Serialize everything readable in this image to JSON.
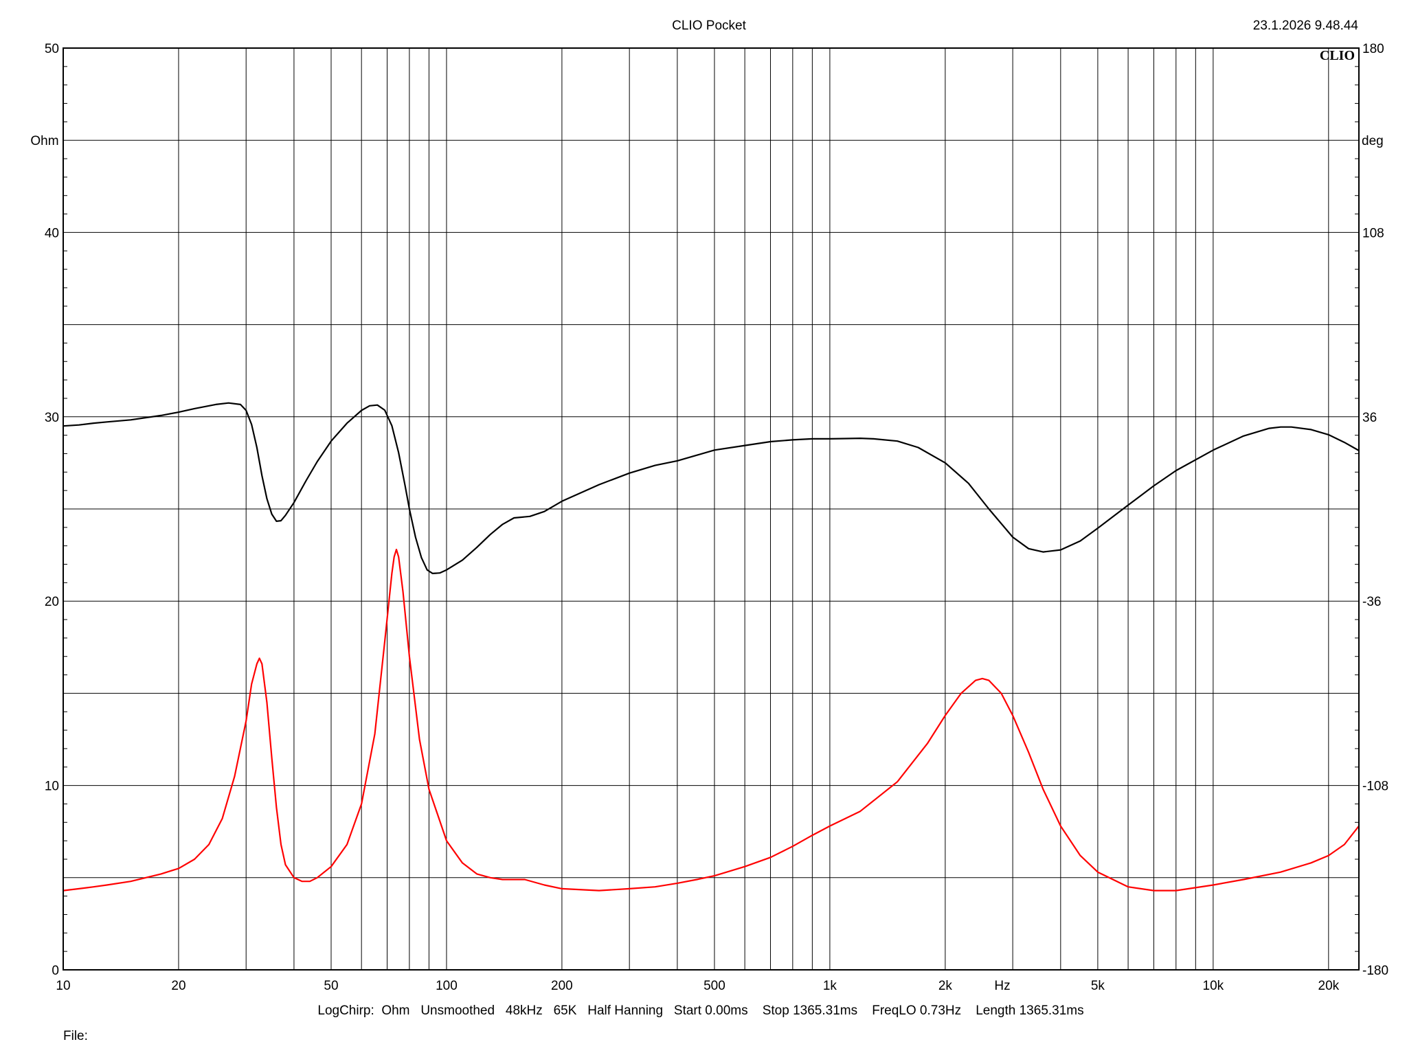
{
  "header": {
    "title": "CLIO Pocket",
    "timestamp": "23.1.2026 9.48.44",
    "brand_mark": "CLIO"
  },
  "footer": {
    "params": "LogChirp:  Ohm   Unsmoothed   48kHz   65K   Half Hanning   Start 0.00ms    Stop 1365.31ms    FreqLO 0.73Hz    Length 1365.31ms",
    "file_label": "File:"
  },
  "chart_data": {
    "type": "line",
    "x_scale": "log",
    "xlim": [
      10,
      24000
    ],
    "x_unit_label": "Hz",
    "x_ticks": [
      10,
      20,
      50,
      100,
      200,
      500,
      1000,
      2000,
      5000,
      10000,
      20000
    ],
    "x_tick_labels": [
      "10",
      "20",
      "50",
      "100",
      "200",
      "500",
      "1k",
      "2k",
      "5k",
      "10k",
      "20k"
    ],
    "y_left": {
      "lim": [
        0,
        50
      ],
      "unit_label": "Ohm",
      "ticks": [
        0,
        10,
        20,
        30,
        40,
        50
      ],
      "tick_labels": [
        "0",
        "10",
        "20",
        "30",
        "40",
        "50"
      ]
    },
    "y_right": {
      "lim": [
        -180,
        180
      ],
      "unit_label": "deg",
      "ticks": [
        -180,
        -108,
        -36,
        36,
        108,
        180
      ],
      "tick_labels": [
        "-180",
        "-108",
        "-36",
        "36",
        "108",
        "180"
      ]
    },
    "grid": true,
    "series": [
      {
        "axis": "right",
        "color": "#000000",
        "points": [
          [
            10,
            32.4
          ],
          [
            11,
            32.8
          ],
          [
            12,
            33.5
          ],
          [
            13,
            34.0
          ],
          [
            15,
            34.8
          ],
          [
            18,
            36.5
          ],
          [
            20,
            37.8
          ],
          [
            22,
            39.2
          ],
          [
            25,
            40.8
          ],
          [
            27,
            41.4
          ],
          [
            29,
            40.8
          ],
          [
            30,
            38.5
          ],
          [
            31,
            33.0
          ],
          [
            32,
            24.0
          ],
          [
            33,
            13.0
          ],
          [
            34,
            4.0
          ],
          [
            35,
            -2.0
          ],
          [
            36,
            -4.8
          ],
          [
            37,
            -4.6
          ],
          [
            38,
            -2.5
          ],
          [
            40,
            2.5
          ],
          [
            43,
            11.0
          ],
          [
            46,
            18.5
          ],
          [
            50,
            26.5
          ],
          [
            55,
            33.5
          ],
          [
            60,
            38.5
          ],
          [
            63,
            40.3
          ],
          [
            66,
            40.6
          ],
          [
            69,
            38.6
          ],
          [
            72,
            32.5
          ],
          [
            75,
            22.0
          ],
          [
            78,
            9.0
          ],
          [
            80,
            0.0
          ],
          [
            83,
            -11.0
          ],
          [
            86,
            -19.0
          ],
          [
            89,
            -23.8
          ],
          [
            92,
            -25.2
          ],
          [
            96,
            -25.0
          ],
          [
            100,
            -23.8
          ],
          [
            110,
            -20.0
          ],
          [
            120,
            -15.0
          ],
          [
            130,
            -10.0
          ],
          [
            140,
            -6.0
          ],
          [
            150,
            -3.5
          ],
          [
            165,
            -2.9
          ],
          [
            180,
            -1.0
          ],
          [
            200,
            3.0
          ],
          [
            250,
            9.5
          ],
          [
            300,
            14.0
          ],
          [
            350,
            17.0
          ],
          [
            400,
            18.8
          ],
          [
            450,
            21.0
          ],
          [
            500,
            23.0
          ],
          [
            600,
            24.8
          ],
          [
            700,
            26.3
          ],
          [
            800,
            27.0
          ],
          [
            900,
            27.4
          ],
          [
            1000,
            27.4
          ],
          [
            1100,
            27.5
          ],
          [
            1200,
            27.6
          ],
          [
            1300,
            27.4
          ],
          [
            1500,
            26.5
          ],
          [
            1700,
            24.0
          ],
          [
            2000,
            18.0
          ],
          [
            2300,
            10.0
          ],
          [
            2600,
            0.0
          ],
          [
            3000,
            -11.0
          ],
          [
            3300,
            -15.5
          ],
          [
            3600,
            -16.8
          ],
          [
            4000,
            -16.0
          ],
          [
            4500,
            -12.5
          ],
          [
            5000,
            -7.5
          ],
          [
            6000,
            1.5
          ],
          [
            7000,
            9.0
          ],
          [
            8000,
            15.0
          ],
          [
            10000,
            23.0
          ],
          [
            12000,
            28.5
          ],
          [
            14000,
            31.5
          ],
          [
            15000,
            32.0
          ],
          [
            16000,
            32.0
          ],
          [
            18000,
            31.0
          ],
          [
            20000,
            29.0
          ],
          [
            22000,
            26.0
          ],
          [
            24000,
            22.8
          ]
        ]
      },
      {
        "axis": "left",
        "color": "#ff0000",
        "points": [
          [
            10,
            4.3
          ],
          [
            11,
            4.4
          ],
          [
            12,
            4.5
          ],
          [
            13,
            4.6
          ],
          [
            15,
            4.8
          ],
          [
            18,
            5.2
          ],
          [
            20,
            5.5
          ],
          [
            22,
            6.0
          ],
          [
            24,
            6.8
          ],
          [
            26,
            8.2
          ],
          [
            28,
            10.5
          ],
          [
            30,
            13.5
          ],
          [
            31,
            15.5
          ],
          [
            32,
            16.6
          ],
          [
            32.5,
            16.9
          ],
          [
            33,
            16.6
          ],
          [
            34,
            14.5
          ],
          [
            35,
            11.5
          ],
          [
            36,
            8.8
          ],
          [
            37,
            6.8
          ],
          [
            38,
            5.7
          ],
          [
            40,
            5.0
          ],
          [
            42,
            4.8
          ],
          [
            44,
            4.8
          ],
          [
            46,
            5.0
          ],
          [
            50,
            5.6
          ],
          [
            55,
            6.8
          ],
          [
            60,
            9.0
          ],
          [
            65,
            12.8
          ],
          [
            69,
            17.8
          ],
          [
            72,
            21.5
          ],
          [
            73,
            22.4
          ],
          [
            74,
            22.8
          ],
          [
            75,
            22.4
          ],
          [
            77,
            20.5
          ],
          [
            80,
            17.0
          ],
          [
            85,
            12.5
          ],
          [
            90,
            9.8
          ],
          [
            100,
            7.0
          ],
          [
            110,
            5.8
          ],
          [
            120,
            5.2
          ],
          [
            130,
            5.0
          ],
          [
            140,
            4.9
          ],
          [
            160,
            4.9
          ],
          [
            180,
            4.6
          ],
          [
            200,
            4.4
          ],
          [
            250,
            4.3
          ],
          [
            300,
            4.4
          ],
          [
            350,
            4.5
          ],
          [
            400,
            4.7
          ],
          [
            450,
            4.9
          ],
          [
            500,
            5.1
          ],
          [
            600,
            5.6
          ],
          [
            700,
            6.1
          ],
          [
            800,
            6.7
          ],
          [
            900,
            7.3
          ],
          [
            1000,
            7.8
          ],
          [
            1200,
            8.6
          ],
          [
            1500,
            10.2
          ],
          [
            1800,
            12.3
          ],
          [
            2000,
            13.8
          ],
          [
            2200,
            15.0
          ],
          [
            2400,
            15.7
          ],
          [
            2500,
            15.8
          ],
          [
            2600,
            15.7
          ],
          [
            2800,
            15.0
          ],
          [
            3000,
            13.8
          ],
          [
            3300,
            11.8
          ],
          [
            3600,
            9.8
          ],
          [
            4000,
            7.8
          ],
          [
            4500,
            6.2
          ],
          [
            5000,
            5.3
          ],
          [
            6000,
            4.5
          ],
          [
            7000,
            4.3
          ],
          [
            8000,
            4.3
          ],
          [
            10000,
            4.6
          ],
          [
            12000,
            4.9
          ],
          [
            15000,
            5.3
          ],
          [
            18000,
            5.8
          ],
          [
            20000,
            6.2
          ],
          [
            22000,
            6.8
          ],
          [
            24000,
            7.8
          ]
        ]
      }
    ]
  }
}
